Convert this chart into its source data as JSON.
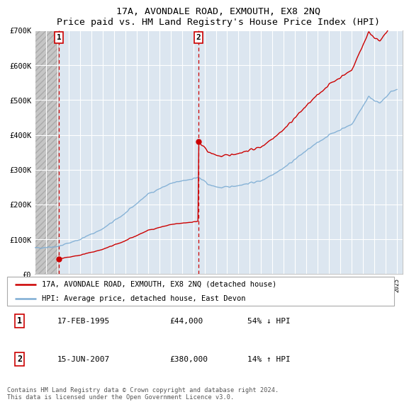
{
  "title": "17A, AVONDALE ROAD, EXMOUTH, EX8 2NQ",
  "subtitle": "Price paid vs. HM Land Registry's House Price Index (HPI)",
  "ylim": [
    0,
    700000
  ],
  "yticks": [
    0,
    100000,
    200000,
    300000,
    400000,
    500000,
    600000,
    700000
  ],
  "ytick_labels": [
    "£0",
    "£100K",
    "£200K",
    "£300K",
    "£400K",
    "£500K",
    "£600K",
    "£700K"
  ],
  "xlim_start": 1993.0,
  "xlim_end": 2025.5,
  "sale1_year": 1995.125,
  "sale1_price": 44000,
  "sale2_year": 2007.458,
  "sale2_price": 380000,
  "legend_line1": "17A, AVONDALE ROAD, EXMOUTH, EX8 2NQ (detached house)",
  "legend_line2": "HPI: Average price, detached house, East Devon",
  "table_row1_num": "1",
  "table_row1_date": "17-FEB-1995",
  "table_row1_price": "£44,000",
  "table_row1_hpi": "54% ↓ HPI",
  "table_row2_num": "2",
  "table_row2_date": "15-JUN-2007",
  "table_row2_price": "£380,000",
  "table_row2_hpi": "14% ↑ HPI",
  "footer": "Contains HM Land Registry data © Crown copyright and database right 2024.\nThis data is licensed under the Open Government Licence v3.0.",
  "red_color": "#cc0000",
  "blue_color": "#7dadd4",
  "bg_plot": "#dce6f0",
  "grid_color": "#ffffff"
}
